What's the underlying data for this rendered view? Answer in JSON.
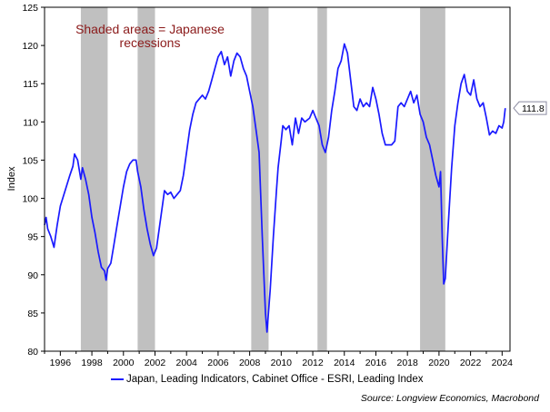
{
  "chart_data": {
    "type": "line",
    "title": "",
    "xlabel": "",
    "ylabel": "Index",
    "xlim": [
      1995.0,
      2024.5
    ],
    "ylim": [
      80,
      125
    ],
    "x_ticks": [
      1996,
      1998,
      2000,
      2002,
      2004,
      2006,
      2008,
      2010,
      2012,
      2014,
      2016,
      2018,
      2020,
      2022,
      2024
    ],
    "y_ticks": [
      80,
      85,
      90,
      95,
      100,
      105,
      110,
      115,
      120,
      125
    ],
    "grid": false,
    "legend_position": "bottom",
    "annotation": [
      "Shaded areas = Japanese",
      "recessions"
    ],
    "recessions": [
      [
        1997.3,
        1999.0
      ],
      [
        2000.9,
        2002.0
      ],
      [
        2008.1,
        2009.2
      ],
      [
        2012.3,
        2012.9
      ],
      [
        2018.8,
        2020.4
      ]
    ],
    "last_value_label": "111.8",
    "series": [
      {
        "name": "Japan, Leading Indicators, Cabinet Office - ESRI, Leading Index",
        "color": "#1a1aff",
        "points": [
          [
            1995.0,
            96.5
          ],
          [
            1995.1,
            97.5
          ],
          [
            1995.2,
            96.0
          ],
          [
            1995.4,
            95.0
          ],
          [
            1995.6,
            93.6
          ],
          [
            1995.8,
            96.5
          ],
          [
            1996.0,
            99.0
          ],
          [
            1996.3,
            101.0
          ],
          [
            1996.6,
            103.0
          ],
          [
            1996.8,
            104.2
          ],
          [
            1996.9,
            105.8
          ],
          [
            1997.1,
            105.0
          ],
          [
            1997.3,
            102.5
          ],
          [
            1997.4,
            104.0
          ],
          [
            1997.6,
            102.5
          ],
          [
            1997.8,
            100.5
          ],
          [
            1998.0,
            97.5
          ],
          [
            1998.2,
            95.5
          ],
          [
            1998.4,
            93.0
          ],
          [
            1998.6,
            91.0
          ],
          [
            1998.8,
            90.5
          ],
          [
            1998.9,
            89.3
          ],
          [
            1999.0,
            90.8
          ],
          [
            1999.2,
            91.5
          ],
          [
            1999.4,
            94.0
          ],
          [
            1999.6,
            96.5
          ],
          [
            1999.8,
            99.0
          ],
          [
            2000.0,
            101.5
          ],
          [
            2000.2,
            103.5
          ],
          [
            2000.4,
            104.5
          ],
          [
            2000.6,
            105.0
          ],
          [
            2000.8,
            105.0
          ],
          [
            2000.9,
            103.5
          ],
          [
            2001.1,
            101.5
          ],
          [
            2001.3,
            98.5
          ],
          [
            2001.5,
            96.0
          ],
          [
            2001.7,
            94.0
          ],
          [
            2001.9,
            92.5
          ],
          [
            2002.1,
            93.5
          ],
          [
            2002.3,
            96.5
          ],
          [
            2002.5,
            99.5
          ],
          [
            2002.6,
            101.0
          ],
          [
            2002.8,
            100.5
          ],
          [
            2003.0,
            100.8
          ],
          [
            2003.2,
            100.0
          ],
          [
            2003.4,
            100.5
          ],
          [
            2003.6,
            101.0
          ],
          [
            2003.8,
            103.0
          ],
          [
            2004.0,
            106.0
          ],
          [
            2004.2,
            109.0
          ],
          [
            2004.4,
            111.0
          ],
          [
            2004.6,
            112.5
          ],
          [
            2004.8,
            113.0
          ],
          [
            2005.0,
            113.5
          ],
          [
            2005.2,
            113.0
          ],
          [
            2005.4,
            114.0
          ],
          [
            2005.6,
            115.5
          ],
          [
            2005.8,
            117.0
          ],
          [
            2006.0,
            118.5
          ],
          [
            2006.2,
            119.2
          ],
          [
            2006.4,
            117.5
          ],
          [
            2006.6,
            118.5
          ],
          [
            2006.8,
            116.0
          ],
          [
            2007.0,
            118.0
          ],
          [
            2007.2,
            119.0
          ],
          [
            2007.4,
            118.5
          ],
          [
            2007.6,
            117.0
          ],
          [
            2007.8,
            116.0
          ],
          [
            2008.0,
            114.0
          ],
          [
            2008.2,
            112.0
          ],
          [
            2008.4,
            109.0
          ],
          [
            2008.6,
            106.0
          ],
          [
            2008.8,
            95.0
          ],
          [
            2009.0,
            85.0
          ],
          [
            2009.1,
            82.5
          ],
          [
            2009.3,
            88.0
          ],
          [
            2009.5,
            95.0
          ],
          [
            2009.7,
            101.0
          ],
          [
            2009.8,
            104.0
          ],
          [
            2010.0,
            107.5
          ],
          [
            2010.1,
            109.5
          ],
          [
            2010.3,
            109.0
          ],
          [
            2010.5,
            109.5
          ],
          [
            2010.7,
            107.0
          ],
          [
            2010.9,
            110.5
          ],
          [
            2011.1,
            108.5
          ],
          [
            2011.3,
            110.5
          ],
          [
            2011.5,
            110.0
          ],
          [
            2011.8,
            110.5
          ],
          [
            2012.0,
            111.5
          ],
          [
            2012.2,
            110.5
          ],
          [
            2012.4,
            109.5
          ],
          [
            2012.6,
            107.0
          ],
          [
            2012.8,
            106.0
          ],
          [
            2013.0,
            108.0
          ],
          [
            2013.2,
            111.5
          ],
          [
            2013.4,
            114.0
          ],
          [
            2013.6,
            117.0
          ],
          [
            2013.8,
            118.0
          ],
          [
            2014.0,
            120.2
          ],
          [
            2014.2,
            119.0
          ],
          [
            2014.4,
            115.5
          ],
          [
            2014.6,
            112.0
          ],
          [
            2014.8,
            111.5
          ],
          [
            2015.0,
            113.0
          ],
          [
            2015.2,
            112.0
          ],
          [
            2015.4,
            112.5
          ],
          [
            2015.6,
            112.0
          ],
          [
            2015.8,
            114.5
          ],
          [
            2016.0,
            113.0
          ],
          [
            2016.2,
            111.0
          ],
          [
            2016.4,
            108.5
          ],
          [
            2016.6,
            107.0
          ],
          [
            2016.8,
            107.0
          ],
          [
            2017.0,
            107.0
          ],
          [
            2017.2,
            107.5
          ],
          [
            2017.4,
            112.0
          ],
          [
            2017.6,
            112.5
          ],
          [
            2017.8,
            112.0
          ],
          [
            2018.0,
            113.0
          ],
          [
            2018.2,
            114.0
          ],
          [
            2018.4,
            112.5
          ],
          [
            2018.6,
            113.5
          ],
          [
            2018.8,
            111.0
          ],
          [
            2019.0,
            110.0
          ],
          [
            2019.2,
            108.0
          ],
          [
            2019.4,
            107.0
          ],
          [
            2019.6,
            105.0
          ],
          [
            2019.8,
            103.0
          ],
          [
            2020.0,
            101.5
          ],
          [
            2020.1,
            103.5
          ],
          [
            2020.2,
            95.0
          ],
          [
            2020.3,
            88.8
          ],
          [
            2020.4,
            89.5
          ],
          [
            2020.6,
            97.0
          ],
          [
            2020.8,
            104.0
          ],
          [
            2021.0,
            109.5
          ],
          [
            2021.2,
            112.5
          ],
          [
            2021.4,
            115.0
          ],
          [
            2021.6,
            116.2
          ],
          [
            2021.8,
            114.0
          ],
          [
            2022.0,
            113.5
          ],
          [
            2022.2,
            115.5
          ],
          [
            2022.4,
            113.0
          ],
          [
            2022.6,
            112.0
          ],
          [
            2022.8,
            112.5
          ],
          [
            2023.0,
            110.5
          ],
          [
            2023.2,
            108.3
          ],
          [
            2023.4,
            108.8
          ],
          [
            2023.6,
            108.5
          ],
          [
            2023.8,
            109.5
          ],
          [
            2024.0,
            109.2
          ],
          [
            2024.1,
            110.0
          ],
          [
            2024.2,
            111.8
          ]
        ]
      }
    ]
  },
  "legend_text": "Japan, Leading Indicators, Cabinet Office - ESRI, Leading Index",
  "source_text": "Source: Longview Economics, Macrobond"
}
